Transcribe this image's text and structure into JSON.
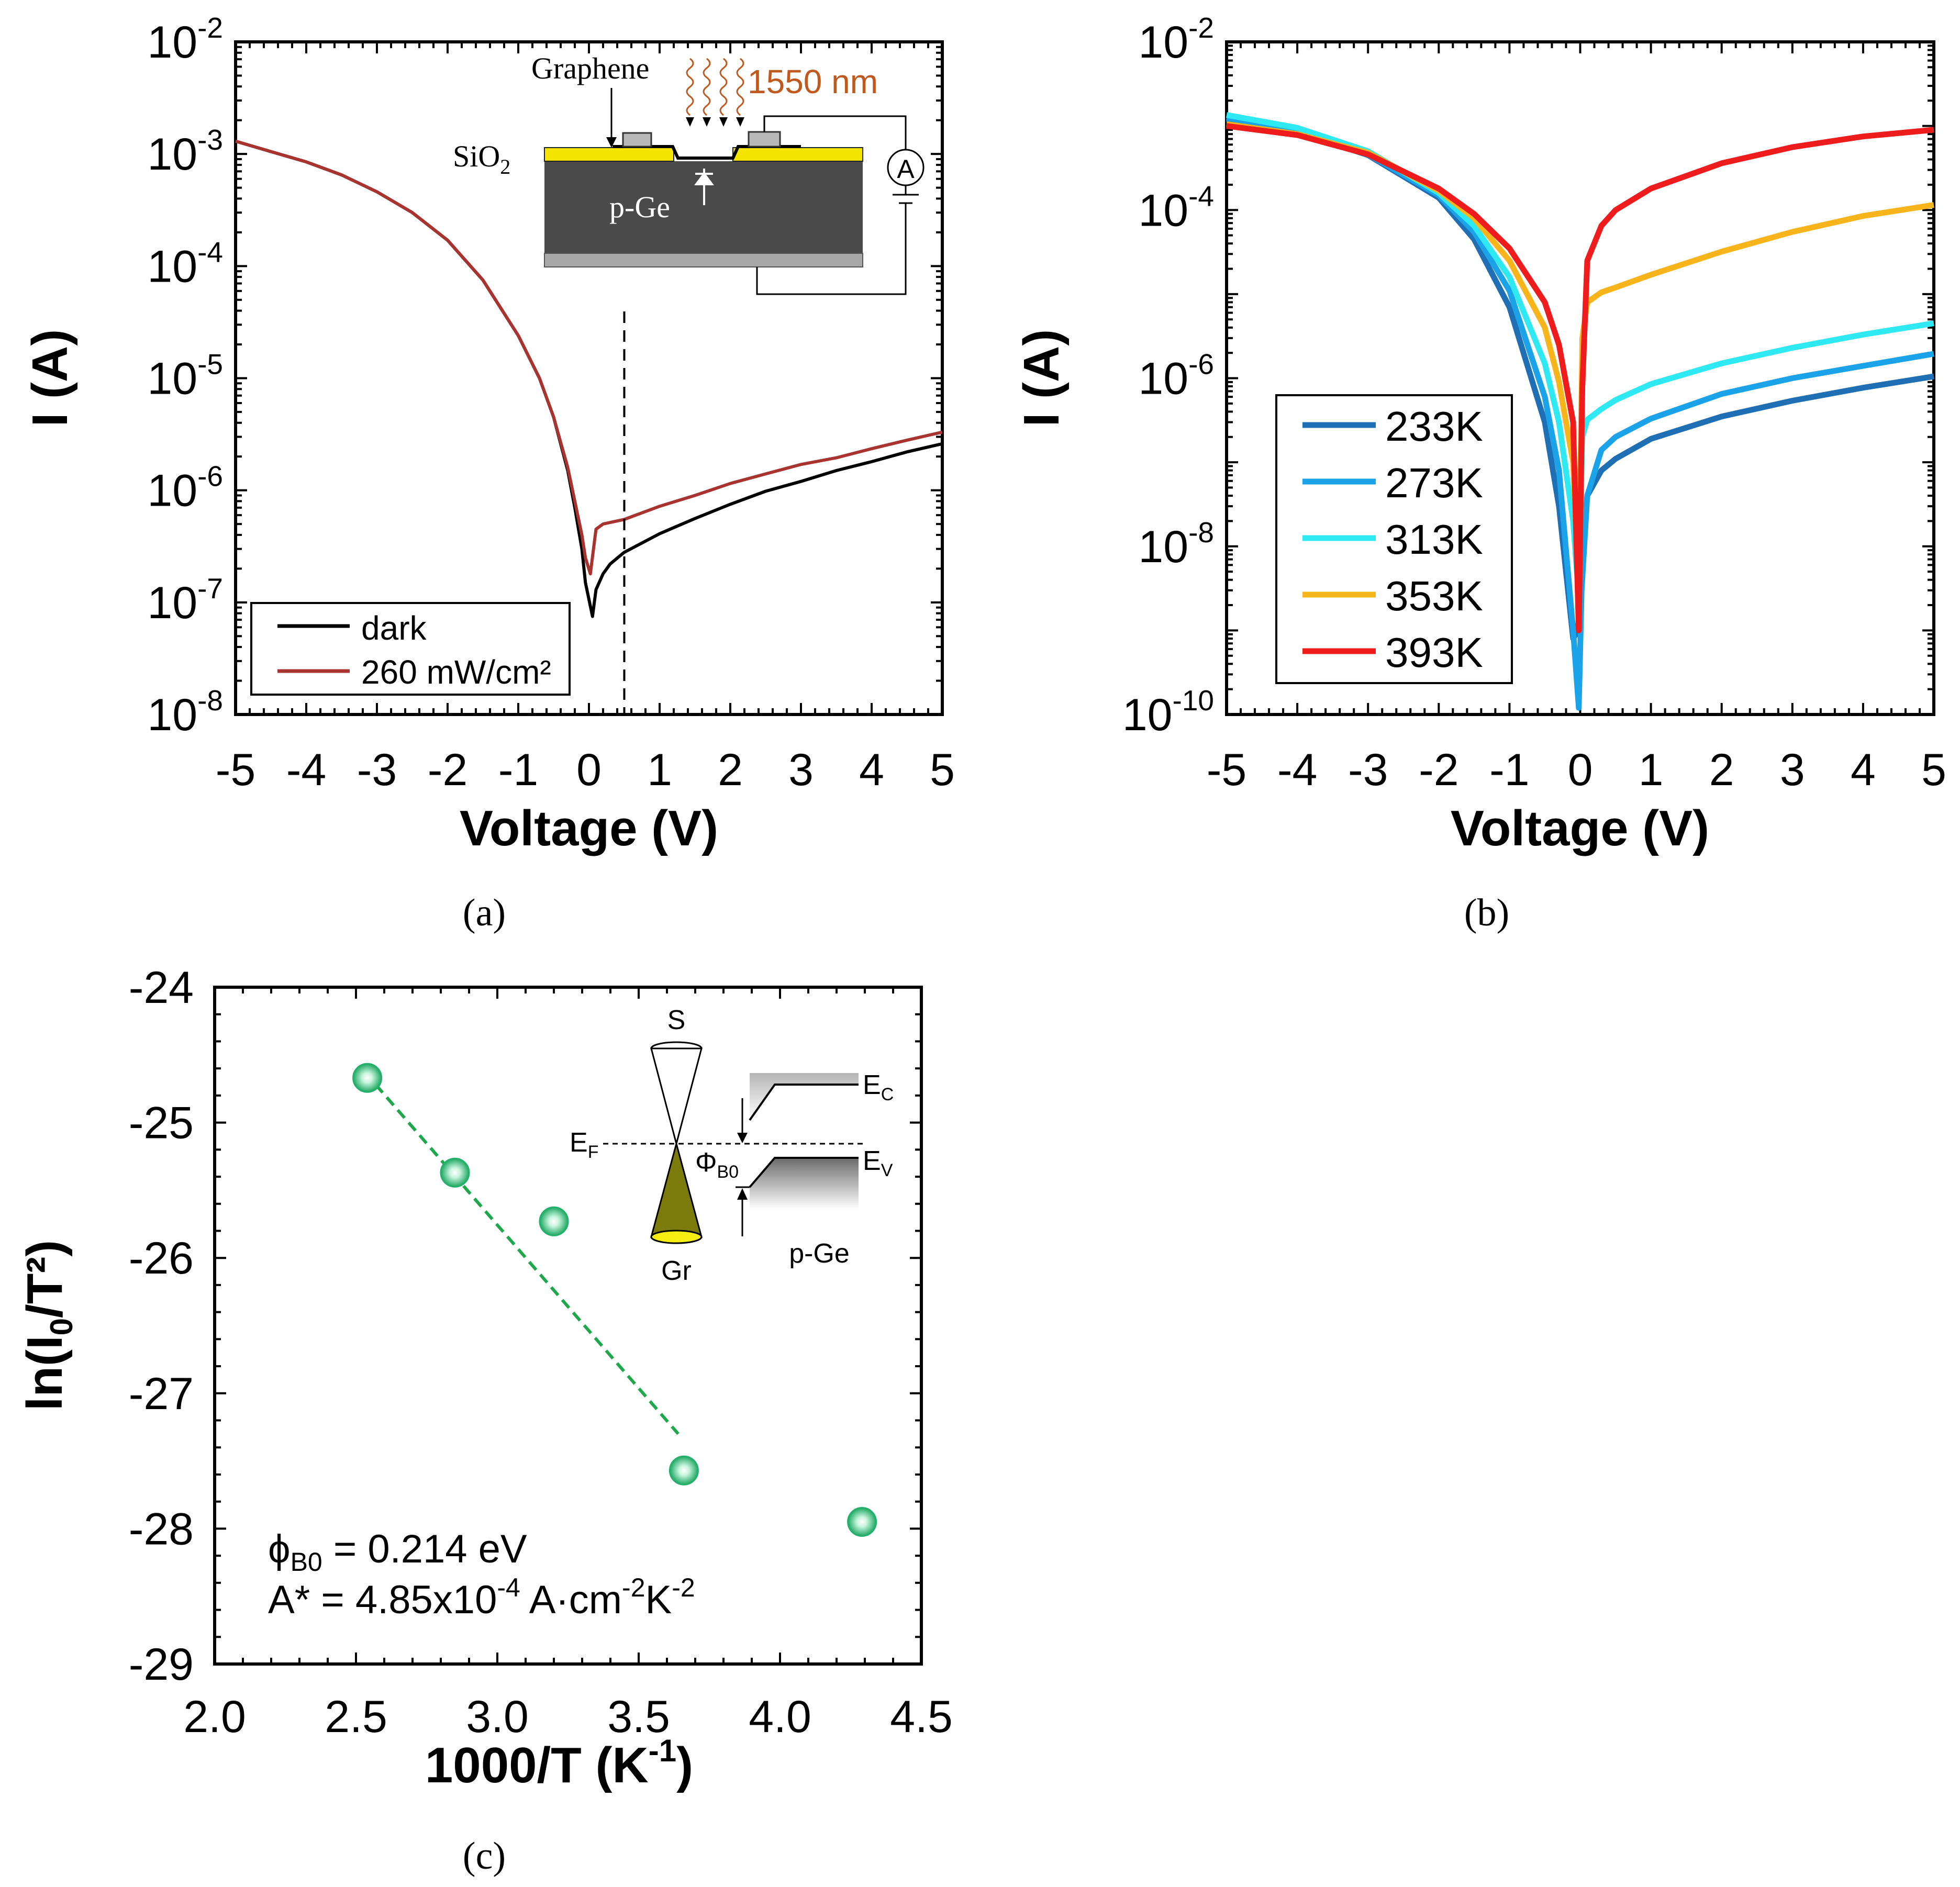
{
  "chart_data": [
    {
      "id": "a",
      "type": "line",
      "yscale": "log",
      "xlabel": "Voltage (V)",
      "ylabel": "I (A)",
      "xlim": [
        -5,
        5
      ],
      "ylim_exp": [
        -8,
        -2
      ],
      "xticks": [
        "-5",
        "-4",
        "-3",
        "-2",
        "-1",
        "0",
        "1",
        "2",
        "3",
        "4",
        "5"
      ],
      "ytick_exps": [
        "-2",
        "-3",
        "-4",
        "-5",
        "-6",
        "-7",
        "-8"
      ],
      "caption": "(a)",
      "vline_x": 0.5,
      "series": [
        {
          "name": "dark",
          "color": "#000000",
          "x": [
            -5,
            -4.5,
            -4,
            -3.5,
            -3,
            -2.5,
            -2,
            -1.5,
            -1,
            -0.7,
            -0.5,
            -0.3,
            -0.2,
            -0.1,
            -0.05,
            0.05,
            0.1,
            0.2,
            0.3,
            0.5,
            1,
            1.5,
            2,
            2.5,
            3,
            3.5,
            4,
            4.5,
            5
          ],
          "y": [
            0.0013,
            0.00105,
            0.00085,
            0.00065,
            0.00046,
            0.0003,
            0.00017,
            7.5e-05,
            2.4e-05,
            1e-05,
            4.5e-06,
            1.5e-06,
            7e-07,
            3e-07,
            1.5e-07,
            7.5e-08,
            1.3e-07,
            1.8e-07,
            2.2e-07,
            2.8e-07,
            4.1e-07,
            5.6e-07,
            7.5e-07,
            9.8e-07,
            1.2e-06,
            1.5e-06,
            1.8e-06,
            2.2e-06,
            2.6e-06
          ]
        },
        {
          "name": "260 mW/cm²",
          "color": "#a8332f",
          "x": [
            -5,
            -4.5,
            -4,
            -3.5,
            -3,
            -2.5,
            -2,
            -1.5,
            -1,
            -0.7,
            -0.5,
            -0.3,
            -0.2,
            -0.1,
            -0.05,
            0.02,
            0.1,
            0.2,
            0.5,
            1,
            1.5,
            2,
            2.5,
            3,
            3.5,
            4,
            4.5,
            5
          ],
          "y": [
            0.0013,
            0.00105,
            0.00085,
            0.00065,
            0.00046,
            0.0003,
            0.00017,
            7.5e-05,
            2.4e-05,
            1e-05,
            4.5e-06,
            1.6e-06,
            8e-07,
            4e-07,
            2.5e-07,
            1.8e-07,
            4.5e-07,
            5e-07,
            5.5e-07,
            7.2e-07,
            9e-07,
            1.15e-06,
            1.4e-06,
            1.7e-06,
            1.95e-06,
            2.35e-06,
            2.8e-06,
            3.3e-06
          ]
        }
      ],
      "legend": [
        "dark",
        "260 mW/cm²"
      ],
      "inset": {
        "graphene": "Graphene",
        "wavelength": "1550 nm",
        "sio2": "SiO",
        "sio2_sub": "2",
        "substrate": "p-Ge",
        "meter": "A"
      }
    },
    {
      "id": "b",
      "type": "line",
      "yscale": "log",
      "xlabel": "Voltage (V)",
      "ylabel": "I (A)",
      "xlim": [
        -5,
        5
      ],
      "ylim_exp": [
        -10,
        -2
      ],
      "xticks": [
        "-5",
        "-4",
        "-3",
        "-2",
        "-1",
        "0",
        "1",
        "2",
        "3",
        "4",
        "5"
      ],
      "ytick_exps": [
        "-2",
        "-4",
        "-6",
        "-8",
        "-10"
      ],
      "caption": "(b)",
      "series": [
        {
          "name": "233K",
          "color": "#1f6fb5",
          "x": [
            -5,
            -4,
            -3,
            -2,
            -1.5,
            -1,
            -0.5,
            -0.3,
            -0.1,
            -0.03,
            0.03,
            0.1,
            0.3,
            0.5,
            1,
            2,
            3,
            4,
            5
          ],
          "y": [
            0.0012,
            0.00085,
            0.00045,
            0.00014,
            4.5e-05,
            7e-06,
            3e-07,
            3e-08,
            8e-10,
            1e-09,
            1e-08,
            4e-08,
            8e-08,
            1.1e-07,
            1.9e-07,
            3.5e-07,
            5.4e-07,
            7.7e-07,
            1.05e-06
          ]
        },
        {
          "name": "273K",
          "color": "#1aa3e8",
          "x": [
            -5,
            -4,
            -3,
            -2,
            -1.5,
            -1,
            -0.5,
            -0.3,
            -0.1,
            -0.02,
            0.02,
            0.1,
            0.3,
            0.5,
            1,
            2,
            3,
            4,
            5
          ],
          "y": [
            0.00125,
            0.00086,
            0.00046,
            0.00015,
            5.5e-05,
            1.1e-05,
            6e-07,
            8e-08,
            1e-09,
            1.2e-10,
            3e-09,
            4e-08,
            1.4e-07,
            2e-07,
            3.3e-07,
            6.5e-07,
            1e-06,
            1.4e-06,
            1.95e-06
          ]
        },
        {
          "name": "313K",
          "color": "#2ee9f2",
          "x": [
            -5,
            -4,
            -3,
            -2,
            -1.5,
            -1,
            -0.5,
            -0.3,
            -0.1,
            -0.02,
            0.03,
            0.1,
            0.3,
            0.5,
            1,
            2,
            3,
            4,
            5
          ],
          "y": [
            0.00135,
            0.00095,
            0.0005,
            0.00016,
            6.5e-05,
            1.6e-05,
            1.5e-06,
            3e-07,
            2e-08,
            2.5e-09,
            2e-07,
            3.2e-07,
            4.3e-07,
            5.5e-07,
            8.5e-07,
            1.5e-06,
            2.3e-06,
            3.3e-06,
            4.5e-06
          ]
        },
        {
          "name": "353K",
          "color": "#f7b51b",
          "x": [
            -5,
            -4,
            -3,
            -2,
            -1.5,
            -1,
            -0.5,
            -0.3,
            -0.1,
            -0.02,
            0.03,
            0.1,
            0.3,
            0.5,
            1,
            2,
            3,
            4,
            5
          ],
          "y": [
            0.00105,
            0.0008,
            0.00048,
            0.00017,
            8e-05,
            2.5e-05,
            4e-06,
            9e-07,
            1e-07,
            3e-09,
            3e-06,
            8e-06,
            1.05e-05,
            1.2e-05,
            1.7e-05,
            3.2e-05,
            5.5e-05,
            8.5e-05,
            0.000115
          ]
        },
        {
          "name": "393K",
          "color": "#ee1c1c",
          "x": [
            -5,
            -4,
            -3,
            -2,
            -1.5,
            -1,
            -0.5,
            -0.3,
            -0.1,
            -0.02,
            0.03,
            0.1,
            0.3,
            0.5,
            1,
            2,
            3,
            4,
            5
          ],
          "y": [
            0.001,
            0.00078,
            0.00046,
            0.00018,
            9e-05,
            3.5e-05,
            8e-06,
            2.5e-06,
            3e-07,
            1e-09,
            8e-07,
            2.5e-05,
            6.5e-05,
            0.0001,
            0.00018,
            0.00036,
            0.00056,
            0.00075,
            0.0009
          ]
        }
      ],
      "legend": [
        "233K",
        "273K",
        "313K",
        "353K",
        "393K"
      ]
    },
    {
      "id": "c",
      "type": "scatter",
      "xlabel": "1000/T (K",
      "xlabel_sup": "-1",
      "xlabel_end": ")",
      "ylabel": "ln(I",
      "ylabel_sub": "0",
      "ylabel_end": "/T²)",
      "xlim": [
        2.0,
        4.5
      ],
      "ylim": [
        -29,
        -24
      ],
      "xticks": [
        "2.0",
        "2.5",
        "3.0",
        "3.5",
        "4.0",
        "4.5"
      ],
      "yticks": [
        "-24",
        "-25",
        "-26",
        "-27",
        "-28",
        "-29"
      ],
      "caption": "(c)",
      "points": {
        "x": [
          2.54,
          2.85,
          3.2,
          3.66,
          4.29
        ],
        "y": [
          -24.67,
          -25.37,
          -25.73,
          -27.57,
          -27.95
        ]
      },
      "fit": {
        "x": [
          2.57,
          3.64
        ],
        "y": [
          -24.72,
          -27.3
        ],
        "color": "#1fa84b"
      },
      "marker_color": "#23b06a",
      "annotation": {
        "phi_sym": "ϕ",
        "phi_sub": "B0",
        "phi_val": " = 0.214 eV",
        "a_pre": "A* = 4.85x10",
        "a_exp1": "-4",
        "a_mid": " A·cm",
        "a_exp2": "-2",
        "a_k": "K",
        "a_exp3": "-2"
      },
      "inset": {
        "s": "S",
        "gr": "Gr",
        "pge": "p-Ge",
        "ec": "E",
        "ec_sub": "C",
        "ev": "E",
        "ev_sub": "V",
        "ef": "E",
        "ef_sub": "F",
        "phib": "Φ",
        "phib_sub": "B0"
      }
    }
  ]
}
